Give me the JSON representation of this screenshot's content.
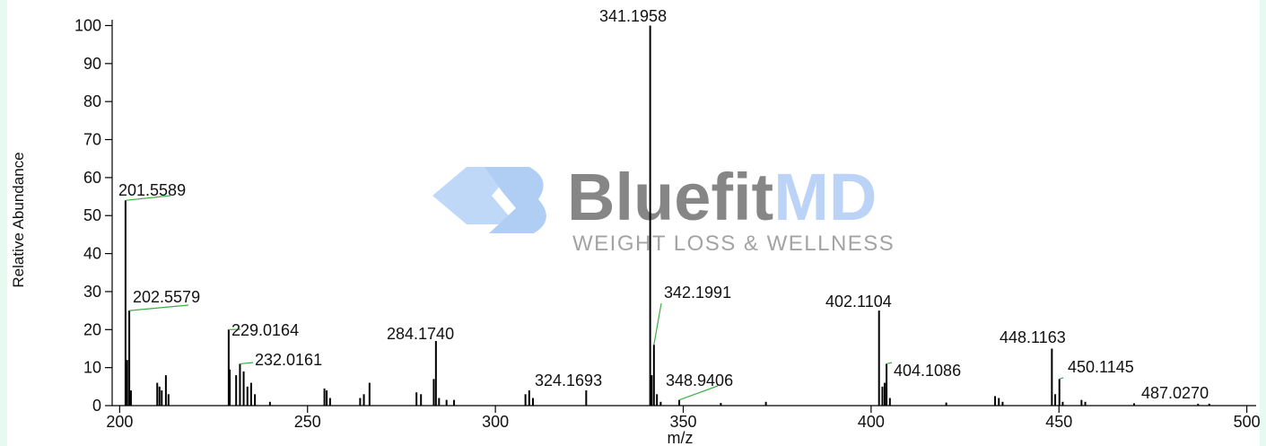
{
  "chart_data": {
    "type": "spectrum",
    "x_label": "m/z",
    "y_label": "Relative Abundance",
    "xlim": [
      198,
      502
    ],
    "ylim": [
      0,
      102
    ],
    "xticks": [
      200,
      250,
      300,
      350,
      400,
      450,
      500
    ],
    "yticks": [
      0,
      10,
      20,
      30,
      40,
      50,
      60,
      70,
      80,
      90,
      100
    ],
    "color": "#000000",
    "leader_color": "#3cb043",
    "x": [
      201.5589,
      202.5579,
      229.0164,
      232.0161,
      284.174,
      324.1693,
      341.1958,
      342.1991,
      348.9406,
      402.1104,
      404.1086,
      448.1163,
      450.1145,
      487.027
    ],
    "peak_labels": [
      "201.5589",
      "202.5579",
      "229.0164",
      "232.0161",
      "284.1740",
      "324.1693",
      "341.1958",
      "342.1991",
      "348.9406",
      "402.1104",
      "404.1086",
      "448.1163",
      "450.1145",
      "487.0270"
    ],
    "values": [
      54,
      25,
      20,
      11,
      17,
      4,
      100,
      16,
      1.5,
      25,
      11,
      15,
      7,
      0.5
    ],
    "minor_peaks": {
      "x": [
        202.0,
        203.0,
        210.0,
        210.6,
        211.2,
        212.3,
        213.0,
        229.3,
        231.0,
        233.0,
        234.0,
        235.0,
        236.0,
        240.0,
        254.5,
        255.1,
        256.0,
        264.0,
        265.0,
        266.5,
        279.0,
        280.2,
        283.6,
        285.0,
        287.0,
        289.0,
        308.0,
        309.0,
        310.0,
        341.6,
        343.0,
        344.0,
        360.0,
        372.0,
        403.0,
        403.6,
        405.0,
        420.0,
        433.0,
        434.0,
        435.0,
        449.0,
        451.0,
        456.0,
        457.0,
        470.0,
        490.0
      ],
      "values": [
        12,
        4,
        6,
        5,
        4,
        8,
        3,
        9.5,
        8,
        9,
        5,
        6,
        3,
        1,
        4.5,
        4,
        2,
        2,
        3,
        6,
        3.5,
        3,
        7,
        2,
        1.5,
        1.5,
        3,
        4,
        2,
        8,
        3,
        1,
        0.7,
        1,
        5,
        6,
        2,
        0.8,
        2.5,
        2,
        1,
        3,
        1,
        1.5,
        1,
        0.6,
        0.5
      ]
    },
    "watermark": {
      "brand": "Bluefit",
      "brand_accent": "MD",
      "tagline": "WEIGHT LOSS & WELLNESS"
    }
  }
}
